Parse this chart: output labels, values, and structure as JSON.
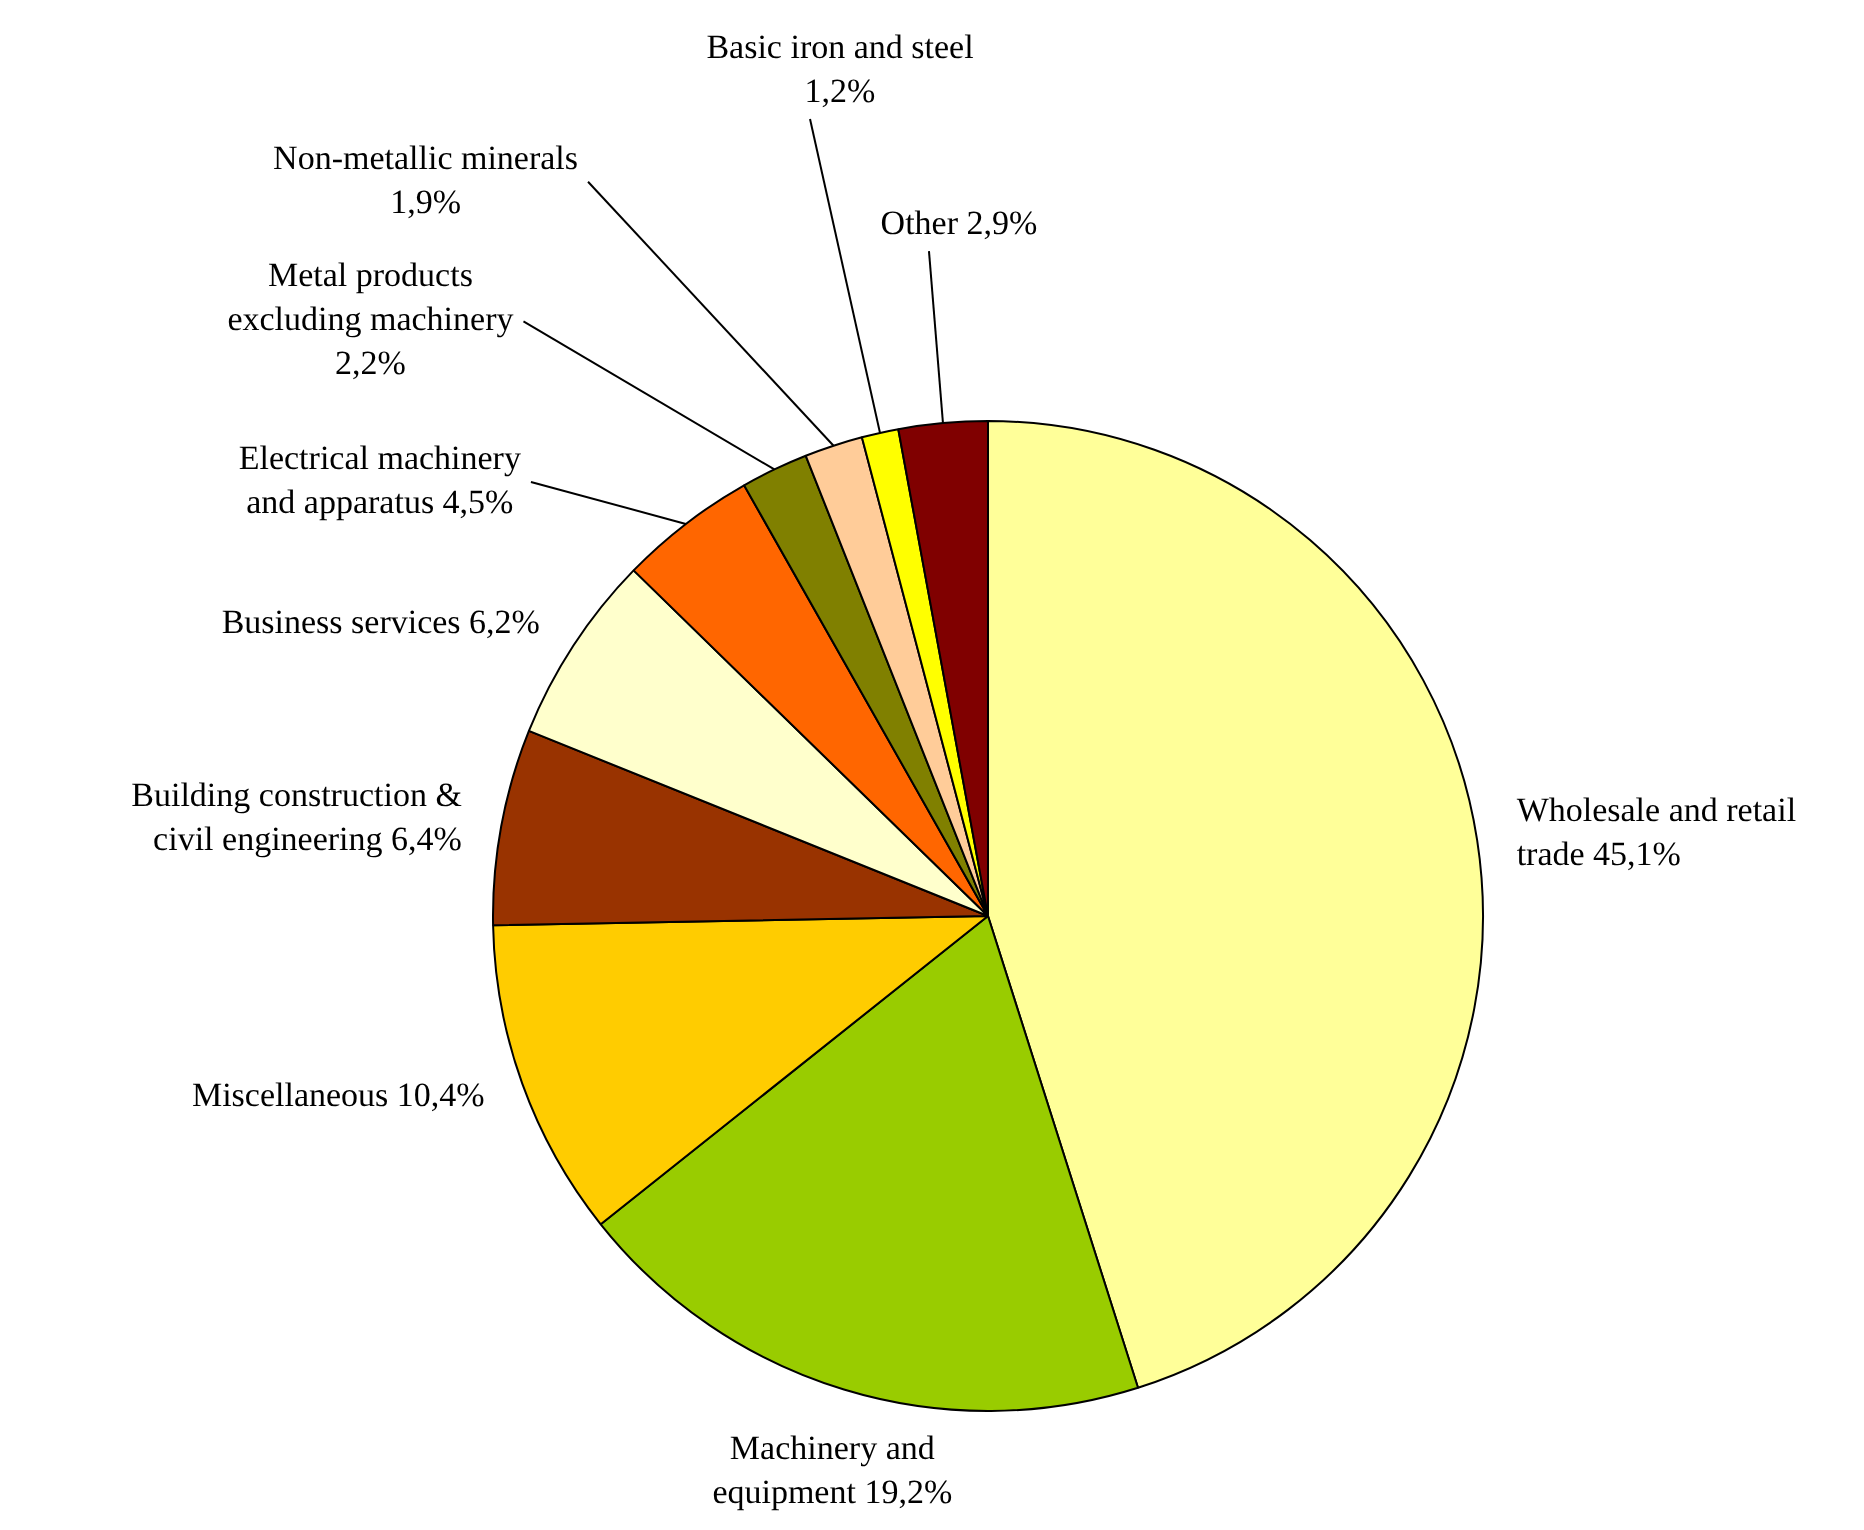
{
  "chart_data": {
    "type": "pie",
    "legend": false,
    "categories": [
      "Wholesale and retail trade",
      "Machinery and equipment",
      "Miscellaneous",
      "Building construction & civil engineering",
      "Business services",
      "Electrical machinery and apparatus",
      "Metal products excluding machinery",
      "Non-metallic minerals",
      "Basic iron and steel",
      "Other"
    ],
    "values": [
      45.1,
      19.2,
      10.4,
      6.4,
      6.2,
      4.5,
      2.2,
      1.9,
      1.2,
      2.9
    ],
    "value_labels": [
      "45,1%",
      "19,2%",
      "10,4%",
      "6,4%",
      "6,2%",
      "4,5%",
      "2,2%",
      "1,9%",
      "1,2%",
      "2,9%"
    ],
    "colors": [
      "#ffff99",
      "#99cc00",
      "#ffcc00",
      "#993300",
      "#ffffcc",
      "#ff6600",
      "#808000",
      "#ffcc99",
      "#ffff00",
      "#800000"
    ]
  }
}
